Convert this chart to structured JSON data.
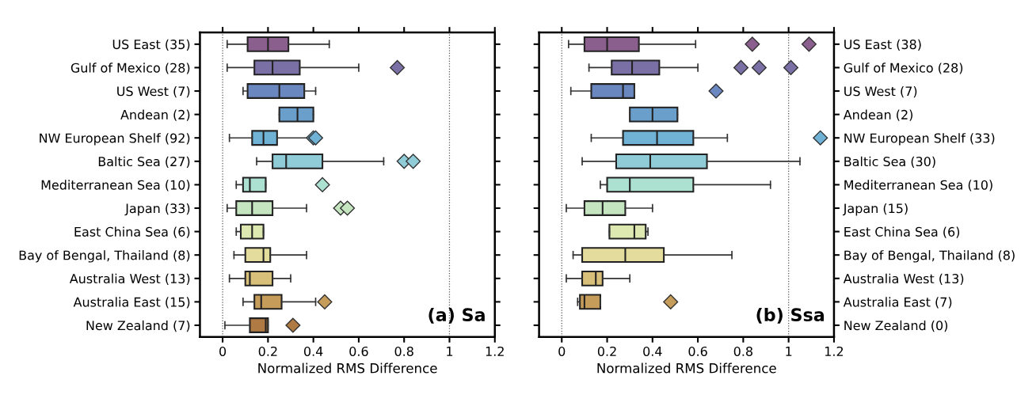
{
  "chart_data": [
    {
      "type": "box",
      "orientation": "horizontal",
      "xlabel": "Normalized RMS Difference",
      "annotations": [
        "(a) Sa"
      ],
      "marker": "diamond",
      "grid": false,
      "categories": [
        "US East (35)",
        "Gulf of Mexico (28)",
        "US West (7)",
        "Andean (2)",
        "NW European Shelf (92)",
        "Baltic Sea (27)",
        "Mediterranean Sea (10)",
        "Japan (33)",
        "East China Sea (6)",
        "Bay of Bengal, Thailand (8)",
        "Australia West (13)",
        "Australia East (15)",
        "New Zealand (7)"
      ],
      "colors": [
        "#8a5f8e",
        "#7b70a6",
        "#6a87bf",
        "#6a9fcb",
        "#6fb2d6",
        "#90ccd8",
        "#ace0d0",
        "#c5e5c0",
        "#dde9b0",
        "#e3dc9c",
        "#d9c07a",
        "#c69c5a",
        "#b07a45"
      ],
      "boxes": [
        {
          "low": 0.02,
          "q1": 0.11,
          "median": 0.2,
          "q3": 0.29,
          "high": 0.47
        },
        {
          "low": 0.02,
          "q1": 0.14,
          "median": 0.22,
          "q3": 0.34,
          "high": 0.6,
          "outliers": [
            0.77
          ]
        },
        {
          "low": 0.09,
          "q1": 0.11,
          "median": 0.25,
          "q3": 0.36,
          "high": 0.41
        },
        {
          "low": 0.25,
          "q1": 0.25,
          "median": 0.33,
          "q3": 0.4,
          "high": 0.4
        },
        {
          "low": 0.03,
          "q1": 0.13,
          "median": 0.18,
          "q3": 0.24,
          "high": 0.39,
          "outliers": [
            0.4,
            0.41
          ]
        },
        {
          "low": 0.15,
          "q1": 0.22,
          "median": 0.28,
          "q3": 0.44,
          "high": 0.71,
          "outliers": [
            0.8,
            0.84
          ]
        },
        {
          "low": 0.06,
          "q1": 0.09,
          "median": 0.12,
          "q3": 0.19,
          "high": 0.19,
          "outliers": [
            0.44
          ]
        },
        {
          "low": 0.02,
          "q1": 0.06,
          "median": 0.13,
          "q3": 0.22,
          "high": 0.37,
          "outliers": [
            0.52,
            0.55
          ]
        },
        {
          "low": 0.06,
          "q1": 0.08,
          "median": 0.13,
          "q3": 0.18,
          "high": 0.18
        },
        {
          "low": 0.05,
          "q1": 0.1,
          "median": 0.18,
          "q3": 0.21,
          "high": 0.37
        },
        {
          "low": 0.03,
          "q1": 0.1,
          "median": 0.12,
          "q3": 0.22,
          "high": 0.3
        },
        {
          "low": 0.09,
          "q1": 0.14,
          "median": 0.17,
          "q3": 0.26,
          "high": 0.41,
          "outliers": [
            0.45
          ]
        },
        {
          "low": 0.01,
          "q1": 0.12,
          "median": 0.19,
          "q3": 0.2,
          "high": 0.2,
          "outliers": [
            0.31
          ]
        }
      ],
      "xlim": [
        -0.1,
        1.2
      ],
      "xticks": [
        0,
        0.2,
        0.4,
        0.6,
        0.8,
        1,
        1.2
      ],
      "ref_lines": [
        {
          "axis": "x",
          "value": 0,
          "label": null,
          "color": "#555555",
          "line_style": "dotted"
        },
        {
          "axis": "x",
          "value": 1,
          "label": null,
          "color": "#555555",
          "line_style": "dotted"
        }
      ]
    },
    {
      "type": "box",
      "orientation": "horizontal",
      "xlabel": "Normalized RMS Difference",
      "annotations": [
        "(b) Ssa"
      ],
      "marker": "diamond",
      "grid": false,
      "categories": [
        "US East (38)",
        "Gulf of Mexico (28)",
        "US West (7)",
        "Andean (2)",
        "NW European Shelf (33)",
        "Baltic Sea (30)",
        "Mediterranean Sea (10)",
        "Japan (15)",
        "East China Sea (6)",
        "Bay of Bengal, Thailand (8)",
        "Australia West (13)",
        "Australia East (7)",
        "New Zealand (0)"
      ],
      "colors": [
        "#8a5f8e",
        "#7b70a6",
        "#6a87bf",
        "#6a9fcb",
        "#6fb2d6",
        "#90ccd8",
        "#ace0d0",
        "#c5e5c0",
        "#dde9b0",
        "#e3dc9c",
        "#d9c07a",
        "#c69c5a",
        "#b07a45"
      ],
      "boxes": [
        {
          "low": 0.03,
          "q1": 0.1,
          "median": 0.2,
          "q3": 0.34,
          "high": 0.59,
          "outliers": [
            0.84,
            1.09
          ]
        },
        {
          "low": 0.12,
          "q1": 0.22,
          "median": 0.31,
          "q3": 0.43,
          "high": 0.6,
          "outliers": [
            0.79,
            0.87,
            1.01
          ]
        },
        {
          "low": 0.04,
          "q1": 0.13,
          "median": 0.27,
          "q3": 0.32,
          "high": 0.32,
          "outliers": [
            0.68
          ]
        },
        {
          "low": 0.3,
          "q1": 0.3,
          "median": 0.4,
          "q3": 0.51,
          "high": 0.51
        },
        {
          "low": 0.13,
          "q1": 0.27,
          "median": 0.42,
          "q3": 0.58,
          "high": 0.73,
          "outliers": [
            1.14
          ]
        },
        {
          "low": 0.09,
          "q1": 0.24,
          "median": 0.39,
          "q3": 0.64,
          "high": 1.05
        },
        {
          "low": 0.17,
          "q1": 0.2,
          "median": 0.3,
          "q3": 0.58,
          "high": 0.92
        },
        {
          "low": 0.02,
          "q1": 0.1,
          "median": 0.18,
          "q3": 0.28,
          "high": 0.4
        },
        {
          "low": 0.21,
          "q1": 0.21,
          "median": 0.32,
          "q3": 0.37,
          "high": 0.38
        },
        {
          "low": 0.05,
          "q1": 0.09,
          "median": 0.28,
          "q3": 0.45,
          "high": 0.75
        },
        {
          "low": 0.02,
          "q1": 0.09,
          "median": 0.15,
          "q3": 0.18,
          "high": 0.3
        },
        {
          "low": 0.07,
          "q1": 0.08,
          "median": 0.1,
          "q3": 0.17,
          "high": 0.17,
          "outliers": [
            0.48
          ]
        },
        null
      ],
      "xlim": [
        -0.1,
        1.2
      ],
      "xticks": [
        0,
        0.2,
        0.4,
        0.6,
        0.8,
        1,
        1.2
      ],
      "ref_lines": [
        {
          "axis": "x",
          "value": 0,
          "label": null,
          "color": "#555555",
          "line_style": "dotted"
        },
        {
          "axis": "x",
          "value": 1,
          "label": null,
          "color": "#555555",
          "line_style": "dotted"
        }
      ]
    }
  ]
}
